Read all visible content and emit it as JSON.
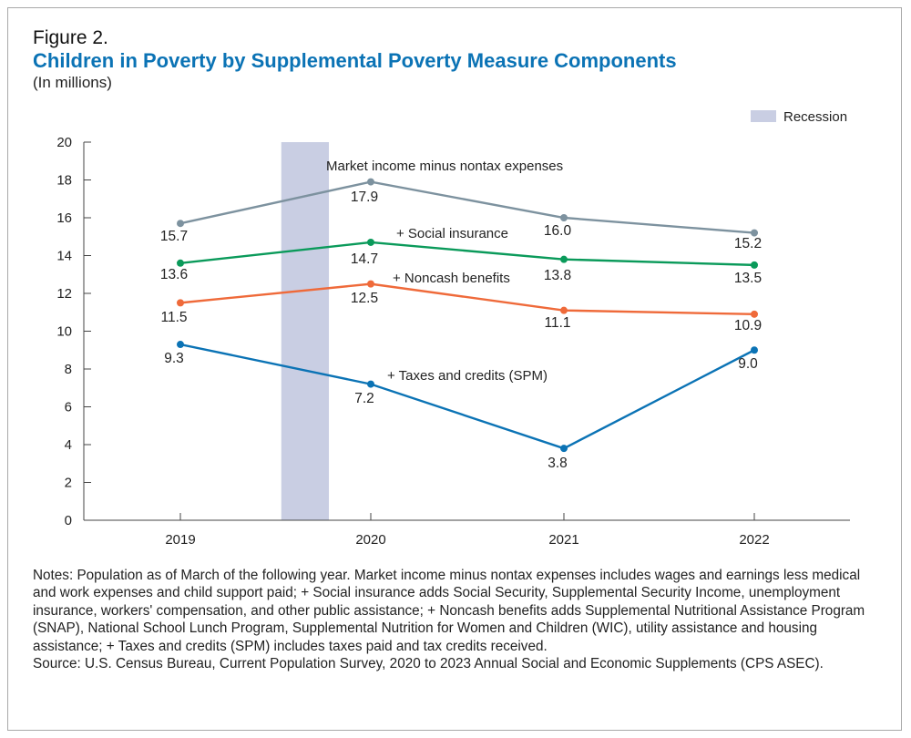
{
  "figure_label": "Figure 2.",
  "title": "Children in Poverty by Supplemental Poverty Measure Components",
  "subtitle": "(In millions)",
  "legend": {
    "recession_label": "Recession",
    "recession_color": "#c9cee3"
  },
  "chart_data": {
    "type": "line",
    "x": [
      "2019",
      "2020",
      "2021",
      "2022"
    ],
    "ylim": [
      0,
      20
    ],
    "yticks": [
      "0",
      "2",
      "4",
      "6",
      "8",
      "10",
      "12",
      "14",
      "16",
      "18",
      "20"
    ],
    "recession": {
      "start": 2019.53,
      "end": 2019.78
    },
    "series": [
      {
        "name": "Market income minus nontax expenses",
        "color": "#7d929f",
        "values": [
          15.7,
          17.9,
          16.0,
          15.2
        ],
        "value_labels": [
          "15.7",
          "17.9",
          "16.0",
          "15.2"
        ]
      },
      {
        "name": "+ Social insurance",
        "color": "#0a9a5a",
        "values": [
          13.6,
          14.7,
          13.8,
          13.5
        ],
        "value_labels": [
          "13.6",
          "14.7",
          "13.8",
          "13.5"
        ]
      },
      {
        "name": "+ Noncash benefits",
        "color": "#ef6a3a",
        "values": [
          11.5,
          12.5,
          11.1,
          10.9
        ],
        "value_labels": [
          "11.5",
          "12.5",
          "11.1",
          "10.9"
        ]
      },
      {
        "name": "+ Taxes and credits (SPM)",
        "color": "#0b73b5",
        "values": [
          9.3,
          7.2,
          3.8,
          9.0
        ],
        "value_labels": [
          "9.3",
          "7.2",
          "3.8",
          "9.0"
        ]
      }
    ]
  },
  "notes": {
    "notes_text": "Notes: Population as of March of the following year. Market income minus nontax expenses includes wages and earnings less medical and work expenses and child support paid; + Social insurance adds Social Security, Supplemental Security Income, unemployment insurance, workers' compensation, and other public assistance;",
    "notes_text_2": " + Noncash benefits adds Supplemental Nutritional Assistance Program (SNAP), National School Lunch Program, Supplemental Nutrition for Women and Children (WIC), utility assistance and housing assistance;  + Taxes and credits (SPM) includes taxes paid and tax credits received.",
    "source_text": "Source: U.S. Census Bureau, Current Population Survey, 2020 to 2023 Annual Social and Economic Supplements (CPS ASEC)."
  }
}
